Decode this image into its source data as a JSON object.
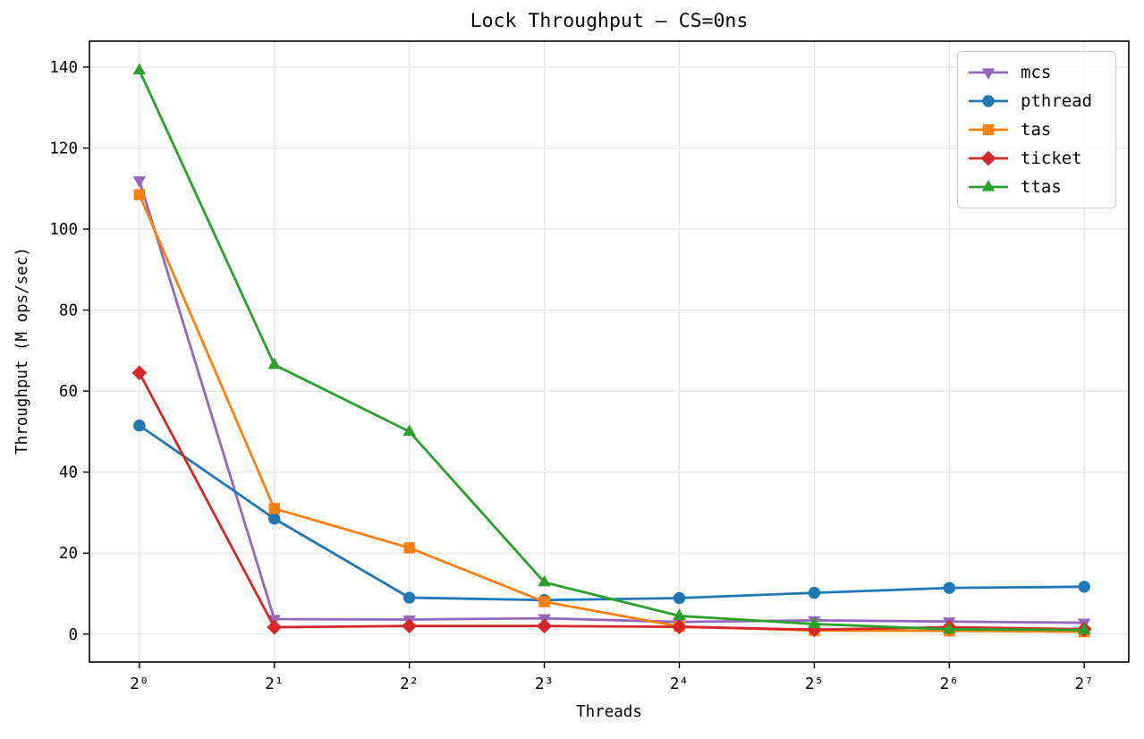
{
  "figure": {
    "title": "Lock Throughput — CS=0ns",
    "xlabel": "Threads",
    "ylabel": "Throughput (M ops/sec)"
  },
  "chart_data": {
    "type": "line",
    "title": "Lock Throughput — CS=0ns",
    "xlabel": "Threads",
    "ylabel": "Throughput (M ops/sec)",
    "x_scale": "log2",
    "x": [
      1,
      2,
      4,
      8,
      16,
      32,
      64,
      128
    ],
    "x_tick_labels": [
      "2⁰",
      "2¹",
      "2²",
      "2³",
      "2⁴",
      "2⁵",
      "2⁶",
      "2⁷"
    ],
    "y_ticks": [
      0,
      20,
      40,
      60,
      80,
      100,
      120,
      140
    ],
    "ylim": [
      -6.9,
      146.4
    ],
    "grid": true,
    "legend_position": "upper right",
    "series": [
      {
        "name": "mcs",
        "color": "#9467bd",
        "marker": "triangle-down",
        "values": [
          112.0,
          3.7,
          3.6,
          3.9,
          3.0,
          3.4,
          3.1,
          2.8
        ]
      },
      {
        "name": "pthread",
        "color": "#1f77b4",
        "marker": "circle",
        "values": [
          51.5,
          28.5,
          9.0,
          8.4,
          8.9,
          10.2,
          11.4,
          11.7
        ]
      },
      {
        "name": "tas",
        "color": "#ff7f0e",
        "marker": "square",
        "values": [
          108.5,
          31.0,
          21.3,
          8.0,
          1.9,
          0.9,
          0.8,
          0.6
        ]
      },
      {
        "name": "ticket",
        "color": "#d62728",
        "marker": "diamond",
        "values": [
          64.5,
          1.7,
          2.0,
          2.0,
          1.8,
          1.1,
          1.7,
          1.2
        ]
      },
      {
        "name": "ttas",
        "color": "#2ca02c",
        "marker": "triangle-up",
        "values": [
          139.2,
          66.5,
          50.0,
          12.8,
          4.5,
          2.5,
          1.2,
          1.0
        ]
      }
    ],
    "colors": {
      "grid": "#e4e4e4",
      "spine": "#000000",
      "background": "#ffffff"
    }
  }
}
